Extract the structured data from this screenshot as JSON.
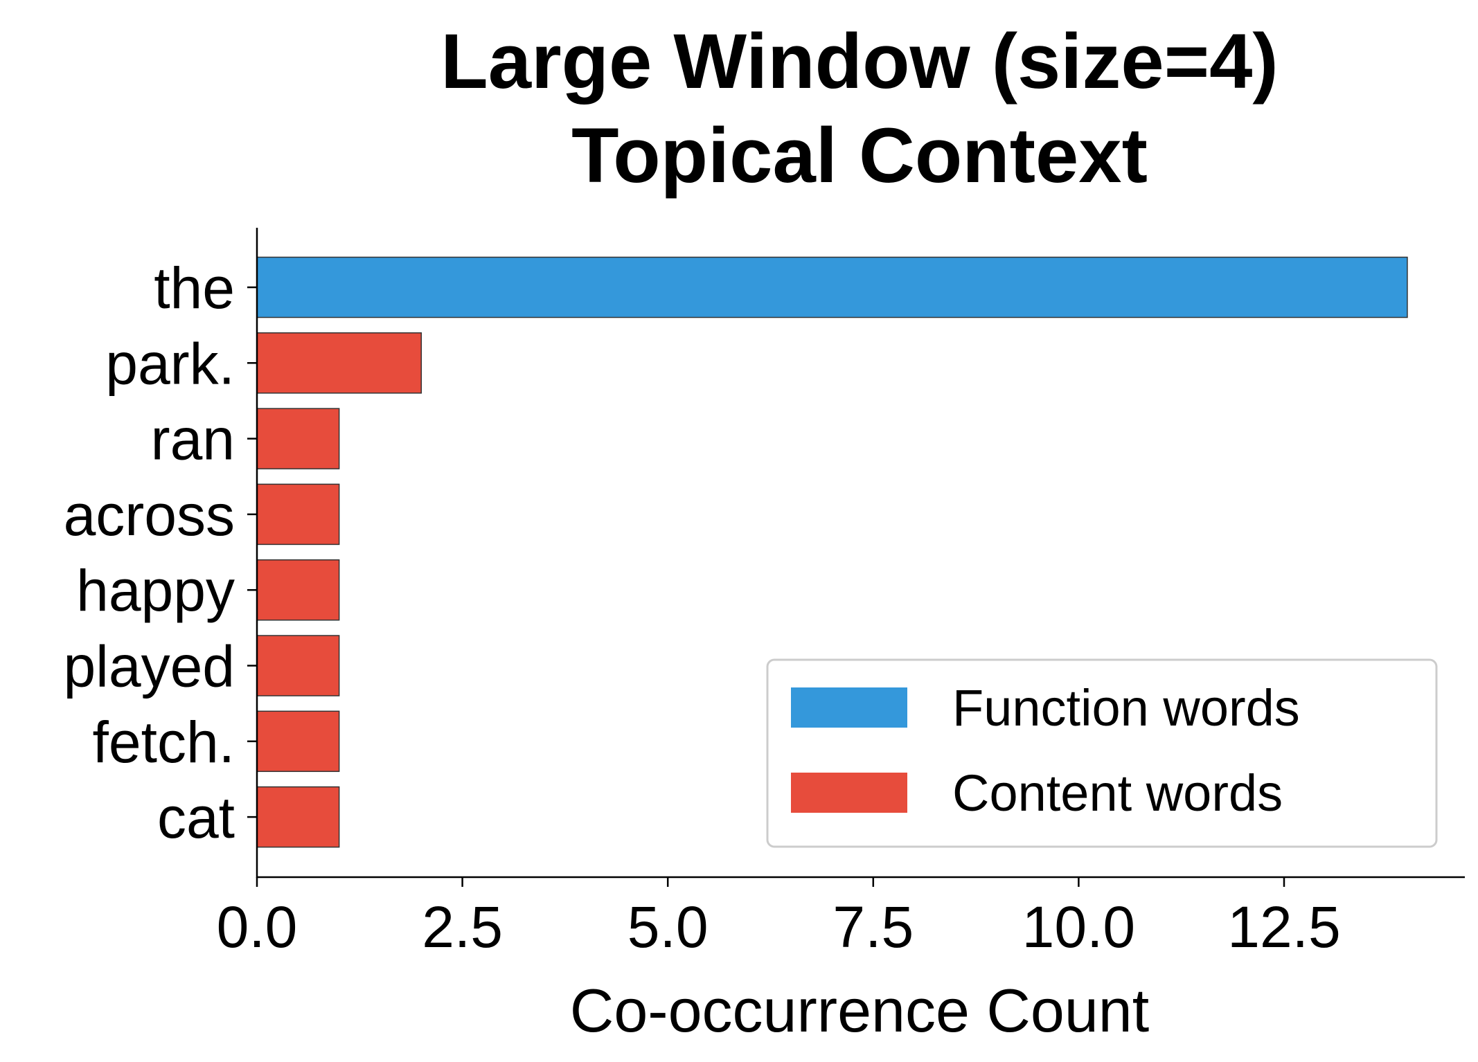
{
  "chart_data": {
    "type": "bar",
    "orientation": "horizontal",
    "title": [
      "Large Window (size=4)",
      "Topical Context"
    ],
    "xlabel": "Co-occurrence Count",
    "ylabel": "",
    "categories": [
      "the",
      "park.",
      "ran",
      "across",
      "happy",
      "played",
      "fetch.",
      "cat"
    ],
    "values": [
      14,
      2,
      1,
      1,
      1,
      1,
      1,
      1
    ],
    "groups": [
      "function",
      "content",
      "content",
      "content",
      "content",
      "content",
      "content",
      "content"
    ],
    "xlim": [
      0,
      14.7
    ],
    "xticks": [
      0.0,
      2.5,
      5.0,
      7.5,
      10.0,
      12.5
    ],
    "xtick_labels": [
      "0.0",
      "2.5",
      "5.0",
      "7.5",
      "10.0",
      "12.5"
    ],
    "grid": false,
    "legend": {
      "placement": "lower-right",
      "entries": [
        {
          "key": "function",
          "label": "Function words",
          "color": "#3498db"
        },
        {
          "key": "content",
          "label": "Content words",
          "color": "#e74c3c"
        }
      ]
    }
  }
}
